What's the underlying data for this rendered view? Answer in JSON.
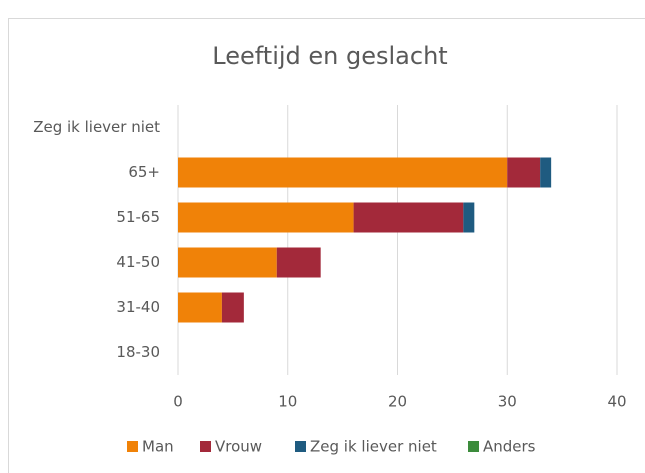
{
  "chart_data": {
    "type": "bar",
    "orientation": "horizontal",
    "stacked": true,
    "title": "Leeftijd en geslacht",
    "categories": [
      "18-30",
      "31-40",
      "41-50",
      "51-65",
      "65+",
      "Zeg ik liever niet"
    ],
    "series": [
      {
        "name": "Man",
        "color": "#f08208",
        "values": [
          0,
          4,
          9,
          16,
          30,
          0
        ]
      },
      {
        "name": "Vrouw",
        "color": "#a3293a",
        "values": [
          0,
          2,
          4,
          10,
          3,
          0
        ]
      },
      {
        "name": "Zeg ik liever niet",
        "color": "#1f5b80",
        "values": [
          0,
          0,
          0,
          1,
          1,
          0
        ]
      },
      {
        "name": "Anders",
        "color": "#3c8c3c",
        "values": [
          0,
          0,
          0,
          0,
          0,
          0
        ]
      }
    ],
    "xlim": [
      0,
      40
    ],
    "xticks": [
      0,
      10,
      20,
      30,
      40
    ],
    "grid": true,
    "legend": "bottom"
  }
}
